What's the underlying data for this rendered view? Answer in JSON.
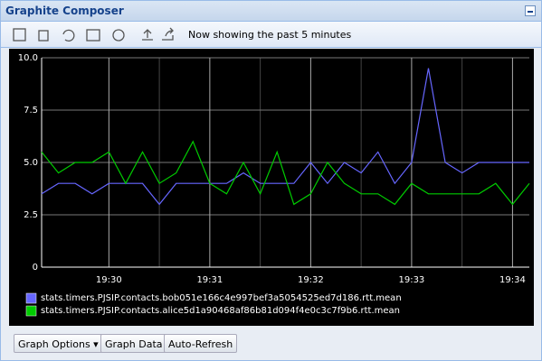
{
  "window_title": "Graphite Composer",
  "toolbar": {
    "status": "Now showing the past 5 minutes"
  },
  "buttons": [
    "Graph Options",
    "Graph Data",
    "Auto-Refresh"
  ],
  "chart_data": {
    "type": "line",
    "categories": [
      null,
      null,
      null,
      null,
      "19:30",
      null,
      null,
      null,
      null,
      null,
      "19:31",
      null,
      null,
      null,
      null,
      null,
      "19:32",
      null,
      null,
      null,
      null,
      null,
      "19:33",
      null,
      null,
      null,
      null,
      null,
      "19:34",
      null
    ],
    "series": [
      {
        "name": "stats.timers.PJSIP.contacts.bob051e166c4e997bef3a5054525ed7d186.rtt.mean",
        "color": "#6666ff",
        "values": [
          3.5,
          4,
          4,
          3.5,
          4,
          4,
          4,
          3,
          4,
          4,
          4,
          4,
          4.5,
          4,
          4,
          4,
          5,
          4,
          5,
          4.5,
          5.5,
          4,
          5,
          9.5,
          5,
          4.5,
          5,
          5,
          5,
          5
        ]
      },
      {
        "name": "stats.timers.PJSIP.contacts.alice5d1a90468af86b81d094f4e0c3c7f9b6.rtt.mean",
        "color": "#00cc00",
        "values": [
          5.5,
          4.5,
          5,
          5,
          5.5,
          4,
          5.5,
          4,
          4.5,
          6,
          4,
          3.5,
          5,
          3.5,
          5.5,
          3,
          3.5,
          5,
          4,
          3.5,
          3.5,
          3,
          4,
          3.5,
          3.5,
          3.5,
          3.5,
          4,
          3,
          4
        ]
      }
    ],
    "ylim": [
      0,
      10
    ],
    "yticks": [
      0,
      2.5,
      {
        "value": 5,
        "label": "5.0"
      },
      7.5,
      {
        "value": 10,
        "label": "10.0"
      }
    ],
    "grid": true
  }
}
